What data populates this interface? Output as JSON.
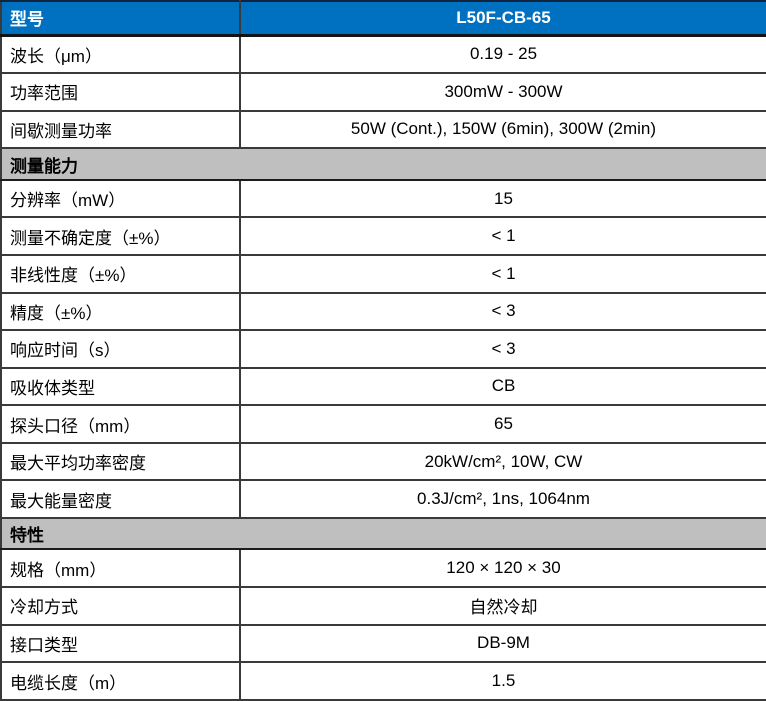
{
  "colors": {
    "header_blue": "#0070C0",
    "section_gray": "#BFBFBF",
    "border_dark": "#3A3A3A",
    "header_text": "#FFFFFF",
    "body_text": "#000000"
  },
  "table": {
    "rows": [
      {
        "type": "header",
        "label": "型号",
        "value": "L50F-CB-65"
      },
      {
        "type": "data",
        "label": "波长（μm）",
        "value": "0.19 - 25"
      },
      {
        "type": "data",
        "label": "功率范围",
        "value": "300mW - 300W"
      },
      {
        "type": "data",
        "label": "间歇测量功率",
        "value": "50W (Cont.), 150W (6min), 300W (2min)"
      },
      {
        "type": "section",
        "label": "测量能力"
      },
      {
        "type": "data",
        "label": "分辨率（mW）",
        "value": "15"
      },
      {
        "type": "data",
        "label": "测量不确定度（±%）",
        "value": "< 1"
      },
      {
        "type": "data",
        "label": "非线性度（±%）",
        "value": "< 1"
      },
      {
        "type": "data",
        "label": "精度（±%）",
        "value": "< 3"
      },
      {
        "type": "data",
        "label": "响应时间（s）",
        "value": "< 3"
      },
      {
        "type": "data",
        "label": "吸收体类型",
        "value": "CB"
      },
      {
        "type": "data",
        "label": "探头口径（mm）",
        "value": "65"
      },
      {
        "type": "data",
        "label": "最大平均功率密度",
        "value": "20kW/cm², 10W, CW"
      },
      {
        "type": "data",
        "label": "最大能量密度",
        "value": "0.3J/cm², 1ns, 1064nm"
      },
      {
        "type": "section",
        "label": "特性"
      },
      {
        "type": "data",
        "label": "规格（mm）",
        "value": "120 × 120 × 30"
      },
      {
        "type": "data",
        "label": "冷却方式",
        "value": "自然冷却"
      },
      {
        "type": "data",
        "label": "接口类型",
        "value": "DB-9M"
      },
      {
        "type": "data",
        "label": "电缆长度（m）",
        "value": "1.5"
      }
    ]
  }
}
